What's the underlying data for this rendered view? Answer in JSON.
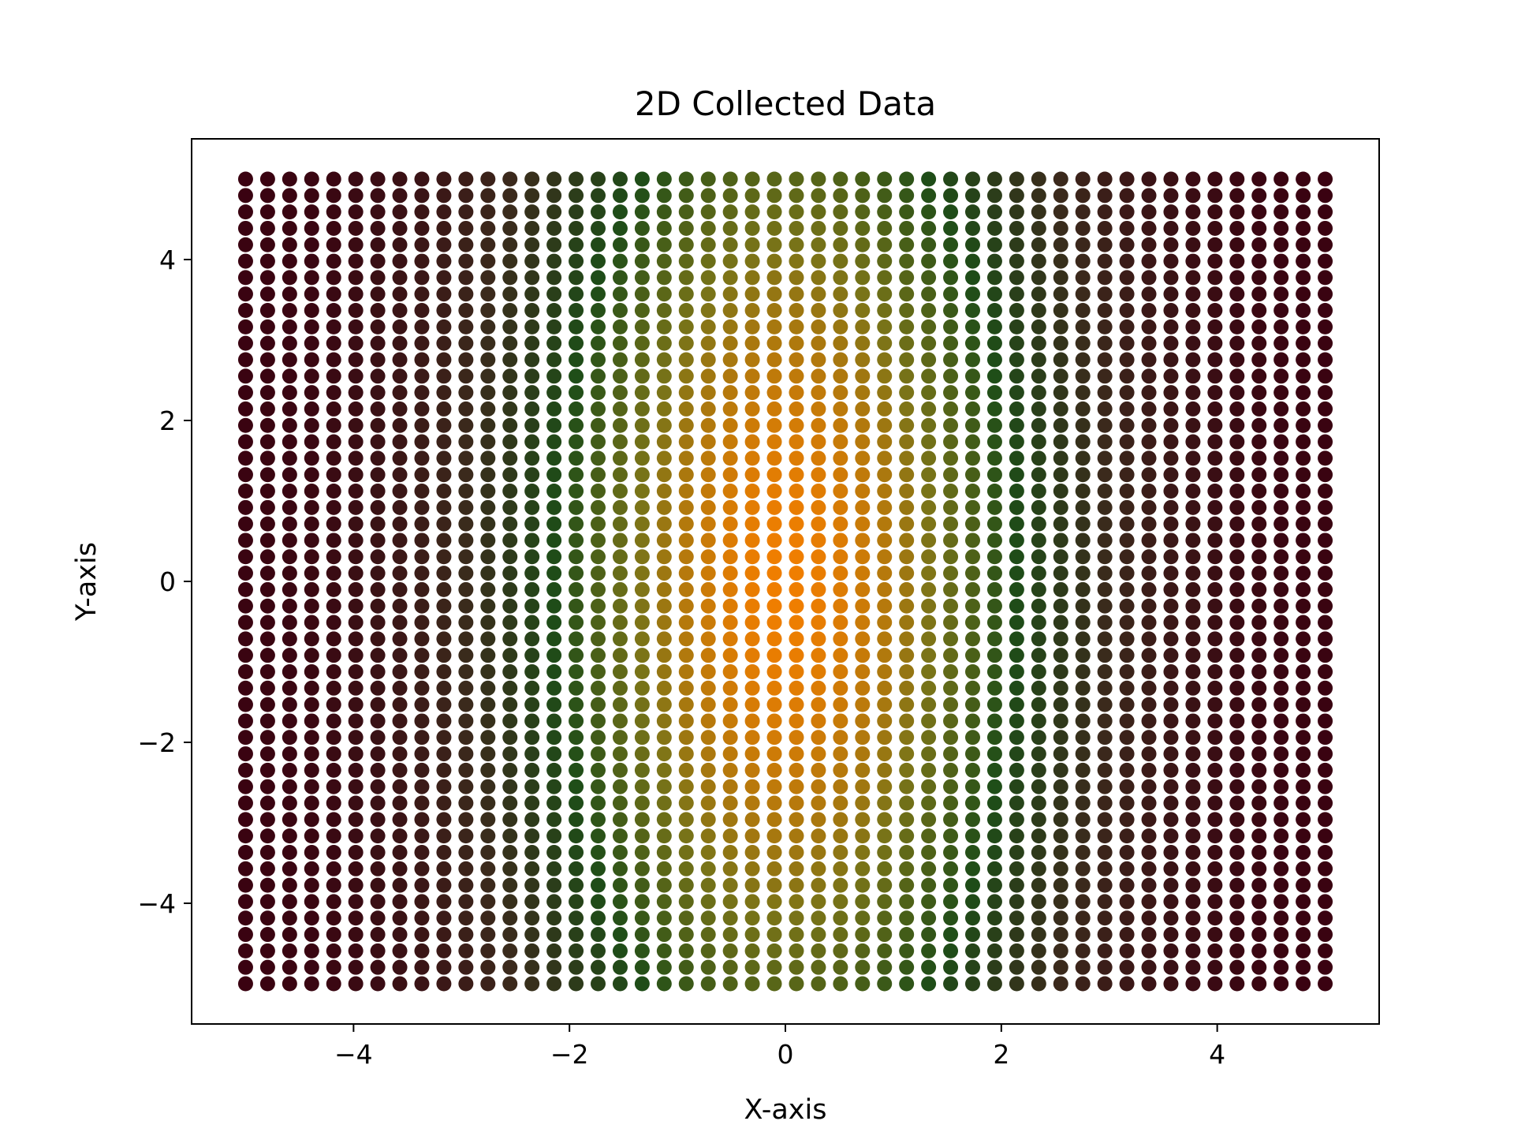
{
  "chart_data": {
    "type": "scatter",
    "title": "2D Collected Data",
    "xlabel": "X-axis",
    "ylabel": "Y-axis",
    "xlim": [
      -5.5,
      5.5
    ],
    "ylim": [
      -5.5,
      5.5
    ],
    "xticks": [
      -4,
      -2,
      0,
      2,
      4
    ],
    "yticks": [
      -4,
      -2,
      0,
      2,
      4
    ],
    "xtick_labels": [
      "−4",
      "−2",
      "0",
      "2",
      "4"
    ],
    "ytick_labels": [
      "−4",
      "−2",
      "0",
      "2",
      "4"
    ],
    "grid": false,
    "legend": "none",
    "grid_points": {
      "x_start": -5,
      "x_end": 5,
      "x_count": 50,
      "y_start": -5,
      "y_end": 5,
      "y_count": 50
    },
    "color_stops": [
      {
        "at": 0.0,
        "color": "#3a0010"
      },
      {
        "at": 0.25,
        "color": "#3b2a1c"
      },
      {
        "at": 0.5,
        "color": "#1e4d18"
      },
      {
        "at": 0.75,
        "color": "#7a7418"
      },
      {
        "at": 1.0,
        "color": "#f07e00"
      }
    ]
  }
}
